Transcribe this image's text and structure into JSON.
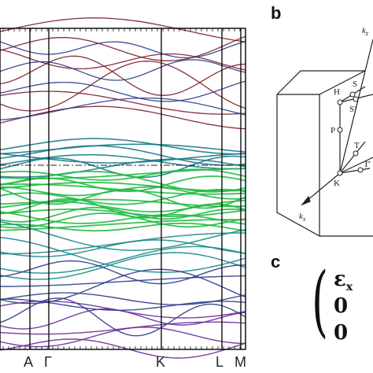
{
  "panels": {
    "b_label": "b",
    "c_label": "c"
  },
  "band_plot": {
    "kpoints": [
      "A",
      "Γ",
      "K",
      "L",
      "M"
    ],
    "colors": {
      "top": "#7a1a2a",
      "upper_mid": "#2a3a8a",
      "valence_top": "#1a7a8a",
      "green": "#22bb44",
      "lower_teal": "#1a8a8a",
      "bottom": "#6a2a9a"
    }
  },
  "brillouin_zone": {
    "points": [
      "H",
      "S",
      "S'",
      "P",
      "T",
      "T'",
      "K"
    ],
    "axes": {
      "kx": "k",
      "kx_sub": "x",
      "kz": "k",
      "kz_sub": "z"
    }
  },
  "matrix": {
    "entries": [
      "ε",
      "0",
      "0"
    ],
    "first_sub": "x"
  }
}
